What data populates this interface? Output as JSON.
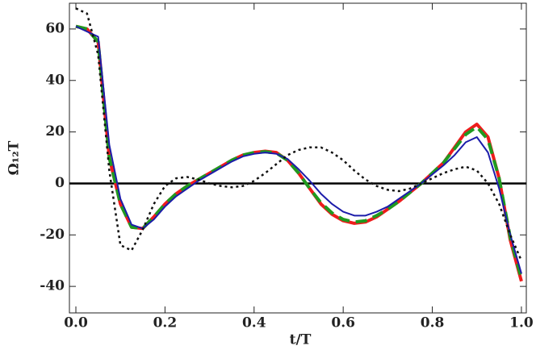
{
  "chart_data": {
    "type": "line",
    "xlabel": "t/T",
    "ylabel": "Ω₁₂T",
    "x": [
      0,
      0.025,
      0.05,
      0.075,
      0.1,
      0.125,
      0.15,
      0.175,
      0.2,
      0.225,
      0.25,
      0.275,
      0.3,
      0.325,
      0.35,
      0.375,
      0.4,
      0.425,
      0.45,
      0.475,
      0.5,
      0.525,
      0.55,
      0.575,
      0.6,
      0.625,
      0.65,
      0.675,
      0.7,
      0.725,
      0.75,
      0.775,
      0.8,
      0.825,
      0.85,
      0.875,
      0.9,
      0.925,
      0.95,
      0.975,
      1.0
    ],
    "series": [
      {
        "color": "#ee1c1c",
        "style": "solid",
        "width": 4,
        "values": [
          61,
          60,
          55,
          10,
          -8,
          -17,
          -17.5,
          -13,
          -8,
          -4,
          -1,
          1.5,
          4,
          6.5,
          9,
          11,
          12,
          12.5,
          12,
          9,
          4,
          -2,
          -8,
          -12,
          -14.5,
          -15.5,
          -15,
          -13,
          -10,
          -7,
          -3.5,
          0,
          4,
          8,
          14,
          20,
          23,
          18,
          2,
          -22,
          -38
        ]
      },
      {
        "color": "#1f9a1f",
        "style": "dashed",
        "width": 4,
        "values": [
          61,
          60,
          55,
          10,
          -8,
          -17,
          -17.5,
          -13,
          -8,
          -4,
          -1,
          1.5,
          4,
          6.5,
          9,
          11,
          12,
          12.3,
          11.8,
          9,
          4,
          -2,
          -7.5,
          -11.5,
          -14,
          -15,
          -14.5,
          -12.5,
          -10,
          -7,
          -3.5,
          0,
          4,
          8,
          13.5,
          19,
          22,
          17,
          2,
          -21,
          -37
        ]
      },
      {
        "color": "#1c1caa",
        "style": "solid",
        "width": 2,
        "values": [
          61,
          59,
          57,
          15,
          -6,
          -16,
          -17.5,
          -14,
          -9,
          -5,
          -2,
          1,
          3.5,
          6,
          8.5,
          10.5,
          11.5,
          12,
          11.5,
          9.5,
          5.5,
          1,
          -4,
          -8,
          -11,
          -12.5,
          -12.5,
          -11,
          -9,
          -6,
          -3,
          0,
          3.5,
          7,
          11,
          16,
          18,
          12,
          -2,
          -20,
          -35
        ]
      },
      {
        "color": "#111111",
        "style": "dotted",
        "width": 2.5,
        "values": [
          68,
          66,
          50,
          5,
          -24,
          -26,
          -18,
          -8,
          -1,
          2,
          2.5,
          1.5,
          0,
          -1,
          -1.5,
          -1,
          1,
          4,
          7.5,
          11,
          13,
          14,
          14,
          12,
          9,
          5,
          1.5,
          -1,
          -2.5,
          -3,
          -2,
          0,
          2,
          4,
          5.5,
          6.5,
          5,
          0,
          -8,
          -20,
          -30
        ]
      }
    ],
    "hline": 0,
    "xlim": [
      -0.0145,
      1.011
    ],
    "ylim": [
      -50.3,
      70
    ],
    "xticks": [
      {
        "value": 0,
        "label": "0.0"
      },
      0.2,
      0.4,
      0.6,
      0.8,
      {
        "value": 1,
        "label": "1.0"
      }
    ],
    "yticks": [
      -40,
      -20,
      0,
      20,
      40,
      60
    ]
  }
}
